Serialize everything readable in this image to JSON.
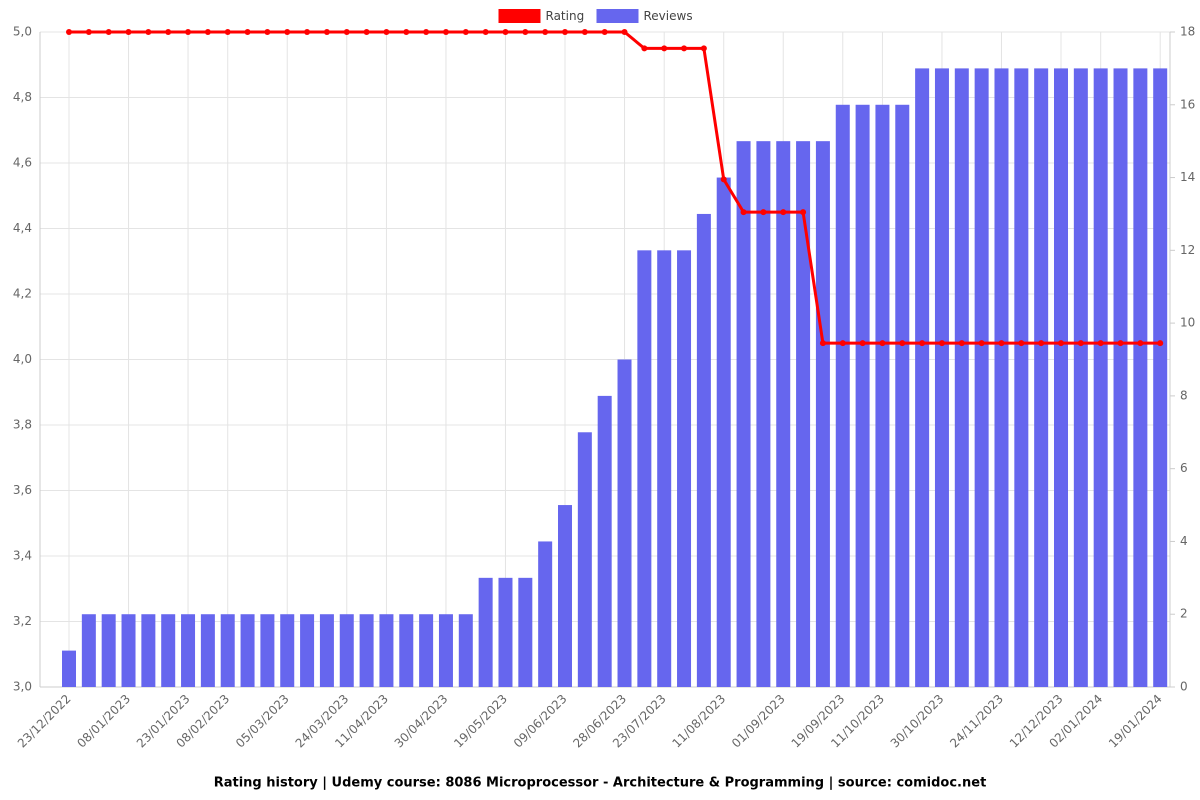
{
  "chart_data": {
    "type": "combo",
    "title": "Rating history | Udemy course: 8086 Microprocessor - Architecture & Programming | source: comidoc.net",
    "categories": [
      "23/12/2022",
      null,
      null,
      "08/01/2023",
      null,
      null,
      "23/01/2023",
      null,
      "08/02/2023",
      null,
      null,
      "05/03/2023",
      null,
      null,
      "24/03/2023",
      null,
      "11/04/2023",
      null,
      null,
      "30/04/2023",
      null,
      null,
      "19/05/2023",
      null,
      null,
      "09/06/2023",
      null,
      null,
      "28/06/2023",
      null,
      "23/07/2023",
      null,
      null,
      "11/08/2023",
      null,
      null,
      "01/09/2023",
      null,
      null,
      "19/09/2023",
      null,
      "11/10/2023",
      null,
      null,
      "30/10/2023",
      null,
      null,
      "24/11/2023",
      null,
      null,
      "12/12/2023",
      null,
      "02/01/2024",
      null,
      null,
      "19/01/2024"
    ],
    "series": [
      {
        "name": "Rating",
        "type": "line",
        "color": "#ff0000",
        "values": [
          5.0,
          5.0,
          5.0,
          5.0,
          5.0,
          5.0,
          5.0,
          5.0,
          5.0,
          5.0,
          5.0,
          5.0,
          5.0,
          5.0,
          5.0,
          5.0,
          5.0,
          5.0,
          5.0,
          5.0,
          5.0,
          5.0,
          5.0,
          5.0,
          5.0,
          5.0,
          5.0,
          5.0,
          5.0,
          4.95,
          4.95,
          4.95,
          4.95,
          4.55,
          4.45,
          4.45,
          4.45,
          4.45,
          4.05,
          4.05,
          4.05,
          4.05,
          4.05,
          4.05,
          4.05,
          4.05,
          4.05,
          4.05,
          4.05,
          4.05,
          4.05,
          4.05,
          4.05,
          4.05,
          4.05,
          4.05
        ]
      },
      {
        "name": "Reviews",
        "type": "bar",
        "color": "#6666ee",
        "axis": "y2",
        "values": [
          1,
          2,
          2,
          2,
          2,
          2,
          2,
          2,
          2,
          2,
          2,
          2,
          2,
          2,
          2,
          2,
          2,
          2,
          2,
          2,
          2,
          3,
          3,
          3,
          4,
          5,
          7,
          8,
          9,
          12,
          12,
          12,
          13,
          14,
          15,
          15,
          15,
          15,
          15,
          16,
          16,
          16,
          16,
          17,
          17,
          17,
          17,
          17,
          17,
          17,
          17,
          17,
          17,
          17,
          17,
          17
        ]
      }
    ],
    "ylim": [
      3,
      5
    ],
    "yticks": [
      {
        "value": 3,
        "label": "3,0"
      },
      {
        "value": 3.2,
        "label": "3,2"
      },
      {
        "value": 3.4,
        "label": "3,4"
      },
      {
        "value": 3.6,
        "label": "3,6"
      },
      {
        "value": 3.8,
        "label": "3,8"
      },
      {
        "value": 4,
        "label": "4,0"
      },
      {
        "value": 4.2,
        "label": "4,2"
      },
      {
        "value": 4.4,
        "label": "4,4"
      },
      {
        "value": 4.6,
        "label": "4,6"
      },
      {
        "value": 4.8,
        "label": "4,8"
      },
      {
        "value": 5,
        "label": "5,0"
      }
    ],
    "y2lim": [
      0,
      18
    ],
    "y2ticks": [
      0,
      2,
      4,
      6,
      8,
      10,
      12,
      14,
      16,
      18
    ],
    "grid": true,
    "legend": "top"
  }
}
